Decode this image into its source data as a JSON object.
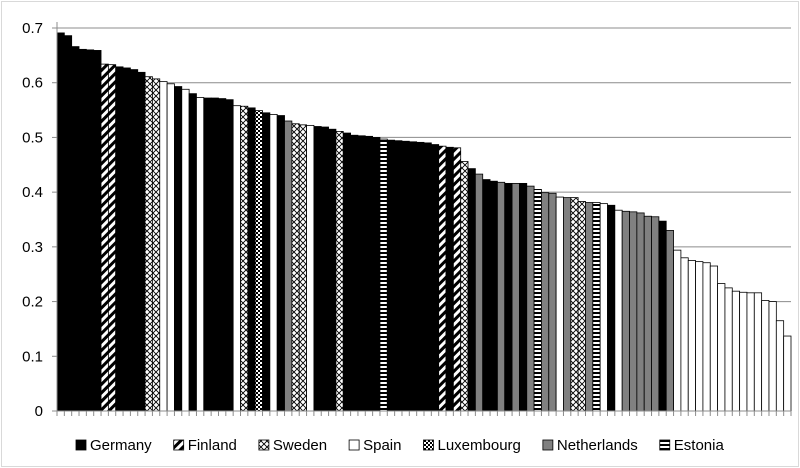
{
  "chart_data": {
    "type": "bar",
    "title": "",
    "xlabel": "",
    "ylabel": "",
    "ylim": [
      0,
      0.7
    ],
    "yticks": [
      "0",
      "0.1",
      "0.2",
      "0.3",
      "0.4",
      "0.5",
      "0.6",
      "0.7"
    ],
    "grid": true,
    "legend_position": "bottom",
    "series": [
      {
        "name": "Germany",
        "fill": "solid-black"
      },
      {
        "name": "Finland",
        "fill": "diagonal-stripes"
      },
      {
        "name": "Sweden",
        "fill": "crosshatch"
      },
      {
        "name": "Spain",
        "fill": "white"
      },
      {
        "name": "Luxembourg",
        "fill": "checker"
      },
      {
        "name": "Netherlands",
        "fill": "gray"
      },
      {
        "name": "Estonia",
        "fill": "horizontal-stripes"
      }
    ],
    "values": [
      0.691,
      0.686,
      0.666,
      0.661,
      0.66,
      0.659,
      0.634,
      0.633,
      0.629,
      0.627,
      0.624,
      0.619,
      0.611,
      0.607,
      0.602,
      0.598,
      0.593,
      0.588,
      0.58,
      0.573,
      0.572,
      0.572,
      0.571,
      0.569,
      0.558,
      0.557,
      0.554,
      0.549,
      0.545,
      0.542,
      0.54,
      0.53,
      0.525,
      0.523,
      0.522,
      0.52,
      0.519,
      0.515,
      0.511,
      0.508,
      0.504,
      0.503,
      0.502,
      0.5,
      0.497,
      0.495,
      0.494,
      0.493,
      0.492,
      0.491,
      0.49,
      0.487,
      0.484,
      0.482,
      0.481,
      0.456,
      0.443,
      0.433,
      0.423,
      0.42,
      0.418,
      0.416,
      0.416,
      0.416,
      0.411,
      0.405,
      0.399,
      0.398,
      0.391,
      0.39,
      0.39,
      0.383,
      0.381,
      0.381,
      0.379,
      0.376,
      0.367,
      0.365,
      0.364,
      0.362,
      0.356,
      0.355,
      0.347,
      0.33,
      0.294,
      0.28,
      0.275,
      0.273,
      0.271,
      0.265,
      0.233,
      0.225,
      0.219,
      0.217,
      0.216,
      0.216,
      0.202,
      0.2,
      0.165,
      0.137
    ],
    "bar_series": [
      0,
      0,
      0,
      0,
      0,
      0,
      1,
      1,
      0,
      0,
      0,
      0,
      2,
      2,
      3,
      3,
      0,
      3,
      0,
      3,
      0,
      0,
      0,
      0,
      3,
      2,
      0,
      4,
      0,
      3,
      0,
      5,
      2,
      2,
      3,
      0,
      0,
      0,
      2,
      0,
      0,
      0,
      0,
      0,
      6,
      0,
      0,
      0,
      0,
      0,
      0,
      0,
      1,
      0,
      1,
      2,
      0,
      5,
      0,
      0,
      5,
      0,
      5,
      0,
      5,
      6,
      5,
      5,
      3,
      5,
      2,
      2,
      5,
      6,
      3,
      0,
      3,
      5,
      5,
      5,
      5,
      5,
      0,
      5,
      3,
      3,
      3,
      3,
      3,
      3,
      3,
      3,
      3,
      3,
      3,
      3,
      3,
      3,
      3,
      3
    ]
  }
}
